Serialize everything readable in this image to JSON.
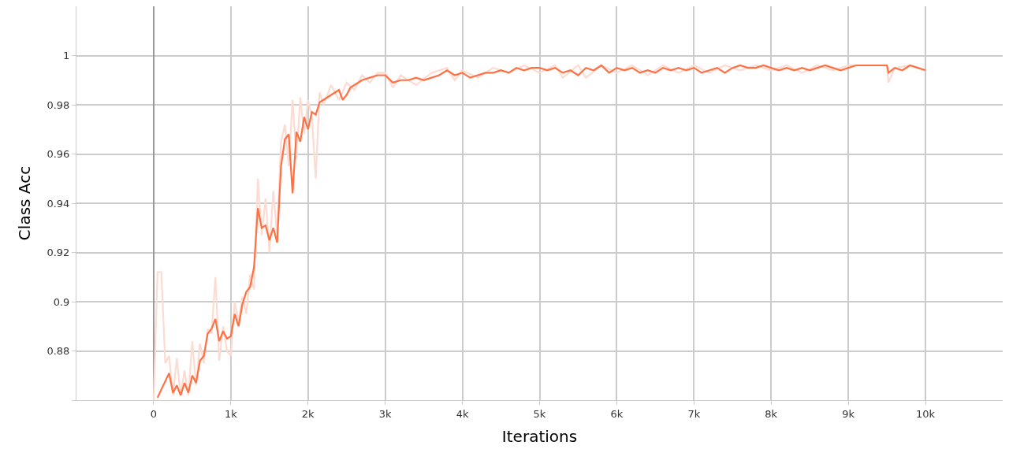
{
  "chart_data": {
    "type": "line",
    "xlabel": "Iterations",
    "ylabel": "Class Acc",
    "xlim": [
      -1000,
      11000
    ],
    "ylim": [
      0.86,
      1.02
    ],
    "xticks": [
      {
        "value": 0,
        "label": "0"
      },
      {
        "value": 1000,
        "label": "1k"
      },
      {
        "value": 2000,
        "label": "2k"
      },
      {
        "value": 3000,
        "label": "3k"
      },
      {
        "value": 4000,
        "label": "4k"
      },
      {
        "value": 5000,
        "label": "5k"
      },
      {
        "value": 6000,
        "label": "6k"
      },
      {
        "value": 7000,
        "label": "7k"
      },
      {
        "value": 8000,
        "label": "8k"
      },
      {
        "value": 9000,
        "label": "9k"
      },
      {
        "value": 10000,
        "label": "10k"
      }
    ],
    "yticks": [
      {
        "value": 0.86,
        "label": null
      },
      0.88,
      0.9,
      0.92,
      0.94,
      0.96,
      0.98,
      1
    ],
    "grid": true,
    "marker": "none",
    "line_style": "solid",
    "series": [
      {
        "color": "#fcdcd2",
        "x": [
          0,
          50,
          100,
          150,
          200,
          250,
          300,
          350,
          400,
          450,
          500,
          550,
          600,
          650,
          700,
          750,
          800,
          850,
          900,
          950,
          1000,
          1050,
          1100,
          1150,
          1200,
          1250,
          1300,
          1350,
          1400,
          1450,
          1500,
          1550,
          1600,
          1650,
          1700,
          1750,
          1800,
          1850,
          1900,
          1950,
          2000,
          2050,
          2100,
          2150,
          2200,
          2300,
          2400,
          2500,
          2600,
          2700,
          2800,
          2900,
          3000,
          3100,
          3200,
          3400,
          3600,
          3800,
          3900,
          4000,
          4200,
          4400,
          4600,
          4800,
          5000,
          5200,
          5300,
          5500,
          5600,
          5800,
          6000,
          6200,
          6400,
          6600,
          6800,
          7000,
          7200,
          7400,
          7600,
          7800,
          8000,
          8200,
          8400,
          8600,
          8800,
          9000,
          9200,
          9400,
          9500,
          9520,
          9600,
          9800,
          10000
        ],
        "values": [
          0.86,
          0.912,
          0.912,
          0.875,
          0.878,
          0.862,
          0.877,
          0.862,
          0.872,
          0.862,
          0.884,
          0.866,
          0.883,
          0.875,
          0.889,
          0.887,
          0.91,
          0.876,
          0.89,
          0.88,
          0.878,
          0.9,
          0.892,
          0.902,
          0.895,
          0.911,
          0.905,
          0.95,
          0.927,
          0.942,
          0.92,
          0.945,
          0.927,
          0.965,
          0.972,
          0.955,
          0.982,
          0.958,
          0.983,
          0.968,
          0.982,
          0.975,
          0.95,
          0.985,
          0.98,
          0.988,
          0.982,
          0.989,
          0.986,
          0.992,
          0.989,
          0.993,
          0.993,
          0.987,
          0.992,
          0.988,
          0.993,
          0.995,
          0.99,
          0.994,
          0.991,
          0.995,
          0.993,
          0.996,
          0.993,
          0.996,
          0.991,
          0.996,
          0.991,
          0.996,
          0.993,
          0.996,
          0.992,
          0.996,
          0.993,
          0.996,
          0.993,
          0.996,
          0.994,
          0.996,
          0.994,
          0.996,
          0.993,
          0.996,
          0.994,
          0.996,
          0.996,
          0.996,
          0.996,
          0.989,
          0.995,
          0.996,
          0.994
        ]
      },
      {
        "color": "#ff7043",
        "x": [
          50,
          200,
          250,
          300,
          350,
          400,
          450,
          500,
          550,
          600,
          650,
          700,
          750,
          800,
          850,
          900,
          950,
          1000,
          1050,
          1100,
          1150,
          1200,
          1250,
          1300,
          1350,
          1400,
          1450,
          1500,
          1550,
          1600,
          1650,
          1700,
          1750,
          1800,
          1850,
          1900,
          1950,
          2000,
          2050,
          2100,
          2150,
          2200,
          2300,
          2400,
          2450,
          2500,
          2550,
          2600,
          2700,
          2800,
          2900,
          3000,
          3100,
          3200,
          3300,
          3400,
          3500,
          3600,
          3700,
          3800,
          3900,
          4000,
          4100,
          4200,
          4300,
          4400,
          4500,
          4600,
          4700,
          4800,
          4900,
          5000,
          5100,
          5200,
          5300,
          5400,
          5500,
          5600,
          5700,
          5800,
          5900,
          6000,
          6100,
          6200,
          6300,
          6400,
          6500,
          6600,
          6700,
          6800,
          6900,
          7000,
          7100,
          7200,
          7300,
          7400,
          7500,
          7600,
          7700,
          7800,
          7900,
          8000,
          8100,
          8200,
          8300,
          8400,
          8500,
          8600,
          8700,
          8800,
          8900,
          9000,
          9100,
          9200,
          9400,
          9500,
          9520,
          9600,
          9700,
          9800,
          9900,
          10000
        ],
        "values": [
          0.861,
          0.871,
          0.863,
          0.866,
          0.862,
          0.867,
          0.863,
          0.87,
          0.867,
          0.876,
          0.878,
          0.887,
          0.889,
          0.893,
          0.884,
          0.888,
          0.885,
          0.886,
          0.895,
          0.89,
          0.899,
          0.904,
          0.906,
          0.914,
          0.938,
          0.93,
          0.931,
          0.925,
          0.93,
          0.924,
          0.955,
          0.966,
          0.968,
          0.944,
          0.969,
          0.965,
          0.975,
          0.97,
          0.977,
          0.976,
          0.981,
          0.982,
          0.984,
          0.986,
          0.982,
          0.984,
          0.987,
          0.988,
          0.99,
          0.991,
          0.992,
          0.992,
          0.989,
          0.99,
          0.99,
          0.991,
          0.99,
          0.991,
          0.992,
          0.994,
          0.992,
          0.993,
          0.991,
          0.992,
          0.993,
          0.993,
          0.994,
          0.993,
          0.995,
          0.994,
          0.995,
          0.995,
          0.994,
          0.995,
          0.993,
          0.994,
          0.992,
          0.995,
          0.994,
          0.996,
          0.993,
          0.995,
          0.994,
          0.995,
          0.993,
          0.994,
          0.993,
          0.995,
          0.994,
          0.995,
          0.994,
          0.995,
          0.993,
          0.994,
          0.995,
          0.993,
          0.995,
          0.996,
          0.995,
          0.995,
          0.996,
          0.995,
          0.994,
          0.995,
          0.994,
          0.995,
          0.994,
          0.995,
          0.996,
          0.995,
          0.994,
          0.995,
          0.996,
          0.996,
          0.996,
          0.996,
          0.993,
          0.995,
          0.994,
          0.996,
          0.995,
          0.994
        ]
      }
    ]
  }
}
